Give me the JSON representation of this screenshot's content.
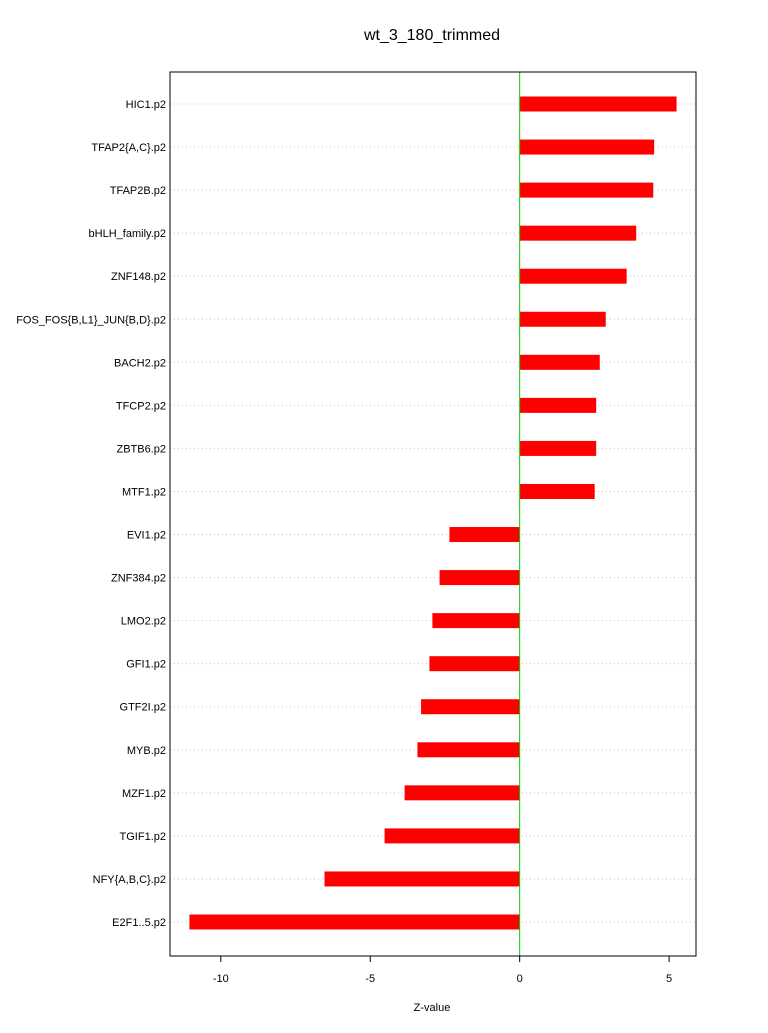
{
  "chart_data": {
    "type": "bar",
    "orientation": "horizontal",
    "title": "wt_3_180_trimmed",
    "xlabel": "Z-value",
    "ylabel": "",
    "xlim": [
      -11.7,
      5.9
    ],
    "xticks": [
      -10,
      -5,
      0,
      5
    ],
    "xtick_labels": [
      "-10",
      "-5",
      "0",
      "5"
    ],
    "zero_line": true,
    "grid": "horizontal dotted",
    "categories": [
      "HIC1.p2",
      "TFAP2{A,C}.p2",
      "TFAP2B.p2",
      "bHLH_family.p2",
      "ZNF148.p2",
      "FOS_FOS{B,L1}_JUN{B,D}.p2",
      "BACH2.p2",
      "TFCP2.p2",
      "ZBTB6.p2",
      "MTF1.p2",
      "EVI1.p2",
      "ZNF384.p2",
      "LMO2.p2",
      "GFI1.p2",
      "GTF2I.p2",
      "MYB.p2",
      "MZF1.p2",
      "TGIF1.p2",
      "NFY{A,B,C}.p2",
      "E2F1..5.p2"
    ],
    "values": [
      5.25,
      4.5,
      4.47,
      3.9,
      3.58,
      2.88,
      2.68,
      2.56,
      2.56,
      2.51,
      -2.35,
      -2.68,
      -2.92,
      -3.02,
      -3.3,
      -3.42,
      -3.85,
      -4.52,
      -6.53,
      -11.05
    ],
    "colors": {
      "bar": "#ff0000",
      "zero_line": "#00cc00",
      "grid": "#c0c0c0",
      "frame": "#000000"
    }
  }
}
